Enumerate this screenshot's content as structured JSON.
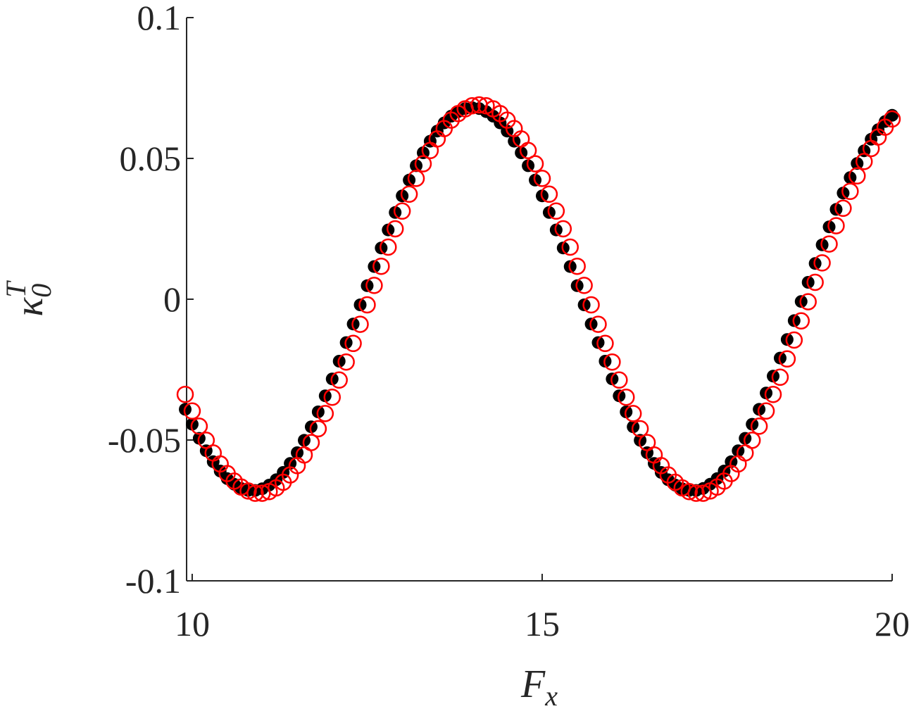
{
  "chart_data": {
    "type": "scatter",
    "xlabel": {
      "text": "F",
      "sub": "x"
    },
    "ylabel": {
      "text": "κ",
      "sub": "0",
      "sup": "T"
    },
    "xlim": [
      9.92,
      20
    ],
    "xticks": [
      10,
      15,
      20
    ],
    "ylim": [
      -0.1,
      0.1
    ],
    "yticks": [
      -0.1,
      -0.05,
      0,
      0.05,
      0.1
    ],
    "x": [
      9.9,
      10,
      10.1,
      10.2,
      10.3,
      10.4,
      10.5,
      10.6,
      10.7,
      10.8,
      10.9,
      11,
      11.1,
      11.2,
      11.3,
      11.4,
      11.5,
      11.6,
      11.7,
      11.8,
      11.9,
      12,
      12.1,
      12.2,
      12.3,
      12.4,
      12.5,
      12.6,
      12.7,
      12.8,
      12.9,
      13,
      13.1,
      13.2,
      13.3,
      13.4,
      13.5,
      13.6,
      13.7,
      13.8,
      13.9,
      14,
      14.1,
      14.2,
      14.3,
      14.4,
      14.5,
      14.6,
      14.7,
      14.8,
      14.9,
      15,
      15.1,
      15.2,
      15.3,
      15.4,
      15.5,
      15.6,
      15.7,
      15.8,
      15.9,
      16,
      16.1,
      16.2,
      16.3,
      16.4,
      16.5,
      16.6,
      16.7,
      16.8,
      16.9,
      17,
      17.1,
      17.2,
      17.3,
      17.4,
      17.5,
      17.6,
      17.7,
      17.8,
      17.9,
      18,
      18.1,
      18.2,
      18.3,
      18.4,
      18.5,
      18.6,
      18.7,
      18.8,
      18.9,
      19,
      19.1,
      19.2,
      19.3,
      19.4,
      19.5,
      19.6,
      19.7,
      19.8,
      19.9,
      20
    ],
    "series": [
      {
        "color": "#000000",
        "marker": "filled",
        "values": [
          -0.0391,
          -0.0444,
          -0.0494,
          -0.0538,
          -0.0577,
          -0.061,
          -0.0637,
          -0.0657,
          -0.0672,
          -0.0679,
          -0.0679,
          -0.0673,
          -0.066,
          -0.0641,
          -0.0615,
          -0.0583,
          -0.0545,
          -0.0501,
          -0.0453,
          -0.04,
          -0.0343,
          -0.0283,
          -0.022,
          -0.0154,
          -0.0088,
          -0.002,
          0.0048,
          0.0116,
          0.0182,
          0.0246,
          0.0308,
          0.0367,
          0.0423,
          0.0474,
          0.052,
          0.0561,
          0.0597,
          0.0626,
          0.065,
          0.0666,
          0.0677,
          0.068,
          0.0677,
          0.0666,
          0.065,
          0.0626,
          0.0597,
          0.0561,
          0.052,
          0.0474,
          0.0423,
          0.0367,
          0.0308,
          0.0246,
          0.0182,
          0.0116,
          0.0048,
          -0.002,
          -0.0088,
          -0.0154,
          -0.022,
          -0.0283,
          -0.0343,
          -0.04,
          -0.0453,
          -0.0501,
          -0.0545,
          -0.0583,
          -0.0615,
          -0.0641,
          -0.066,
          -0.0673,
          -0.0679,
          -0.0679,
          -0.0672,
          -0.0657,
          -0.0637,
          -0.061,
          -0.0577,
          -0.0538,
          -0.0494,
          -0.0444,
          -0.0391,
          -0.0333,
          -0.0273,
          -0.0209,
          -0.0143,
          -0.0076,
          -0.0008,
          0.006,
          0.0127,
          0.0193,
          0.0257,
          0.0319,
          0.0377,
          0.0432,
          0.0482,
          0.0527,
          0.0568,
          0.0602,
          0.0631,
          0.0653
        ]
      },
      {
        "color": "#ff0000",
        "marker": "open",
        "values": [
          -0.0338,
          -0.0397,
          -0.0451,
          -0.0501,
          -0.0546,
          -0.0585,
          -0.0619,
          -0.0646,
          -0.0667,
          -0.0681,
          -0.0689,
          -0.0689,
          -0.0683,
          -0.067,
          -0.065,
          -0.0624,
          -0.0591,
          -0.0553,
          -0.0509,
          -0.046,
          -0.0406,
          -0.0348,
          -0.0287,
          -0.0223,
          -0.0157,
          -0.0089,
          -0.002,
          0.0049,
          0.0117,
          0.0185,
          0.025,
          0.0313,
          0.0373,
          0.0429,
          0.0481,
          0.0528,
          0.0569,
          0.0606,
          0.0636,
          0.0659,
          0.0676,
          0.0687,
          0.069,
          0.0687,
          0.0676,
          0.0659,
          0.0636,
          0.0606,
          0.0569,
          0.0528,
          0.0481,
          0.0429,
          0.0373,
          0.0313,
          0.025,
          0.0185,
          0.0117,
          0.0049,
          -0.002,
          -0.0089,
          -0.0157,
          -0.0223,
          -0.0287,
          -0.0348,
          -0.0406,
          -0.046,
          -0.0509,
          -0.0553,
          -0.0591,
          -0.0624,
          -0.065,
          -0.067,
          -0.0683,
          -0.0689,
          -0.0689,
          -0.0681,
          -0.0667,
          -0.0646,
          -0.0619,
          -0.0585,
          -0.0546,
          -0.0501,
          -0.0451,
          -0.0397,
          -0.0338,
          -0.0277,
          -0.0212,
          -0.0145,
          -0.0077,
          -0.0009,
          0.006,
          0.0129,
          0.0196,
          0.0261,
          0.0323,
          0.0383,
          0.0438,
          0.0489,
          0.0535,
          0.0576,
          0.0611,
          0.064
        ]
      }
    ]
  }
}
